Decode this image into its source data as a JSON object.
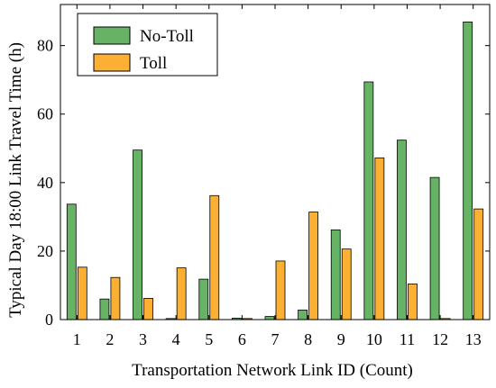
{
  "chart_data": {
    "type": "bar",
    "title": "",
    "xlabel": "Transportation Network Link ID (Count)",
    "ylabel": "Typical Day 18:00 Link Travel Time (h)",
    "categories": [
      "1",
      "2",
      "3",
      "4",
      "5",
      "6",
      "7",
      "8",
      "9",
      "10",
      "11",
      "12",
      "13"
    ],
    "ylim": [
      0,
      92
    ],
    "yticks": [
      0,
      20,
      40,
      60,
      80
    ],
    "legend_position": "top-left",
    "grid": false,
    "series": [
      {
        "name": "No-Toll",
        "color": "#66b366",
        "values": [
          33.7,
          6.0,
          49.5,
          0.3,
          11.8,
          0.4,
          0.9,
          2.8,
          26.2,
          69.4,
          52.4,
          41.5,
          86.9
        ]
      },
      {
        "name": "Toll",
        "color": "#fbb033",
        "values": [
          15.3,
          12.3,
          6.2,
          15.1,
          36.2,
          0.3,
          17.1,
          31.4,
          20.6,
          47.2,
          10.4,
          0.3,
          32.3
        ]
      }
    ]
  }
}
